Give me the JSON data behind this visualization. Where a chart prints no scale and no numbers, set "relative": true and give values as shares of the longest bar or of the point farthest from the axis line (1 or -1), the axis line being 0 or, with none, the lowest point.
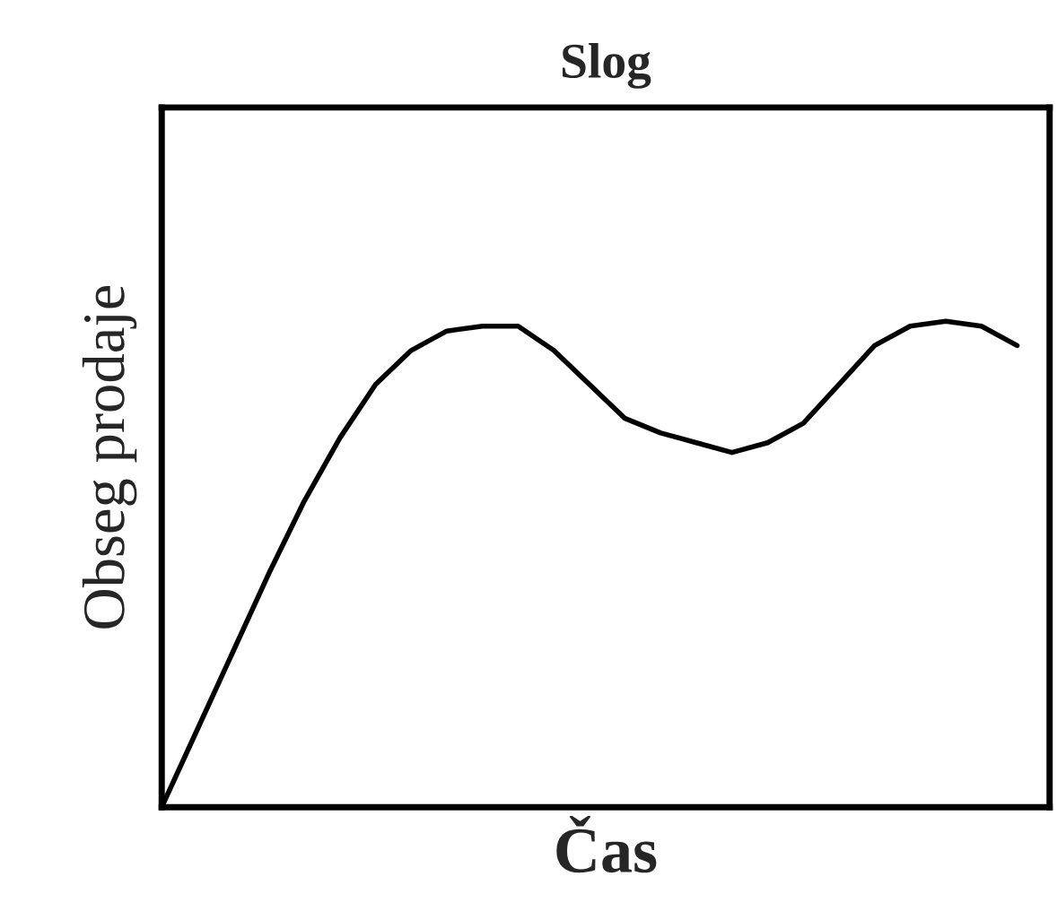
{
  "chart_data": {
    "type": "line",
    "title": "Slog",
    "xlabel": "Čas",
    "ylabel": "Obseg prodaje",
    "relative": true,
    "tick_labels": false,
    "legend": false,
    "marker": "none",
    "line_style": "solid",
    "categories": [
      null,
      null,
      null,
      null,
      null,
      null,
      null,
      null,
      null,
      null,
      null,
      null,
      null,
      null,
      null,
      null,
      null,
      null,
      null,
      null,
      null,
      null,
      null,
      null,
      null
    ],
    "series": [
      {
        "color": "#000000",
        "values": [
          0,
          0.16,
          0.32,
          0.48,
          0.63,
          0.76,
          0.87,
          0.94,
          0.98,
          0.99,
          0.99,
          0.94,
          0.87,
          0.8,
          0.77,
          0.75,
          0.73,
          0.75,
          0.79,
          0.87,
          0.95,
          0.99,
          1,
          0.99,
          0.95
        ]
      }
    ]
  }
}
